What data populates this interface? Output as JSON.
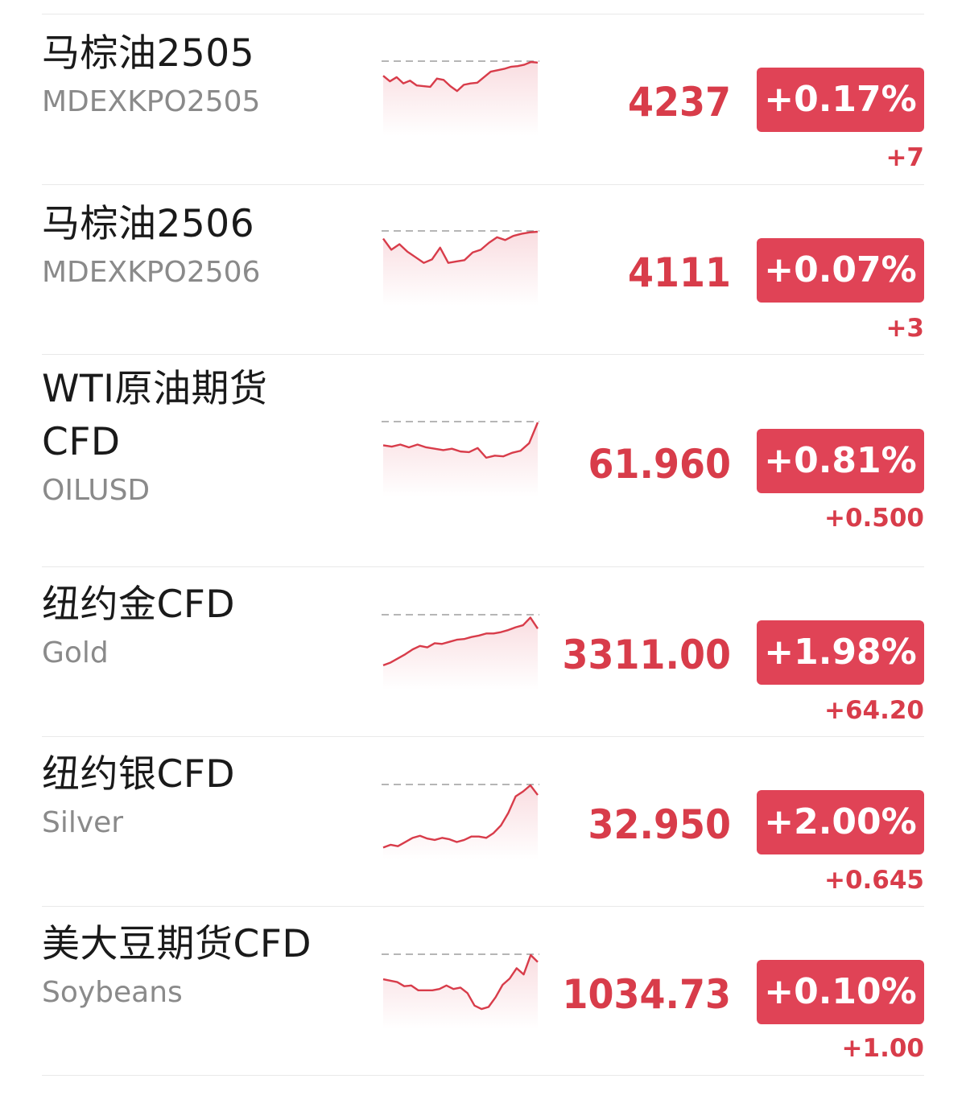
{
  "colors": {
    "up": "#d83c4a",
    "badge": "#e04356",
    "name": "#1a1a1a",
    "code": "#8a8a8a",
    "divider": "#e9e9e9"
  },
  "rows": [
    {
      "name": "马棕油2505",
      "code": "MDEXKPO2505",
      "price": "4237",
      "pct": "+0.17%",
      "change": "+7",
      "spark": [
        20,
        28,
        22,
        31,
        27,
        34,
        35,
        36,
        24,
        26,
        35,
        42,
        33,
        31,
        30,
        22,
        14,
        12,
        10,
        7,
        6,
        4,
        0,
        1
      ]
    },
    {
      "name": "马棕油2506",
      "code": "MDEXKPO2506",
      "price": "4111",
      "pct": "+0.07%",
      "change": "+3",
      "spark": [
        10,
        26,
        18,
        29,
        37,
        45,
        40,
        23,
        45,
        43,
        41,
        30,
        26,
        16,
        8,
        12,
        6,
        3,
        1,
        0
      ]
    },
    {
      "name": "WTI原油期货CFD",
      "code": "OILUSD",
      "price": "61.960",
      "pct": "+0.81%",
      "change": "+0.500",
      "spark": [
        33,
        35,
        32,
        36,
        32,
        36,
        38,
        40,
        38,
        42,
        43,
        37,
        51,
        48,
        49,
        44,
        41,
        30,
        0
      ]
    },
    {
      "name": "纽约金CFD",
      "code": "Gold",
      "price": "3311.00",
      "pct": "+1.98%",
      "change": "+64.20",
      "spark": [
        72,
        68,
        62,
        56,
        49,
        44,
        46,
        40,
        41,
        38,
        35,
        34,
        31,
        29,
        26,
        26,
        24,
        21,
        17,
        14,
        3,
        19
      ]
    },
    {
      "name": "纽约银CFD",
      "code": "Silver",
      "price": "32.950",
      "pct": "+2.00%",
      "change": "+0.645",
      "spark": [
        90,
        86,
        88,
        82,
        76,
        73,
        77,
        79,
        76,
        78,
        82,
        79,
        74,
        74,
        76,
        69,
        58,
        40,
        16,
        9,
        0,
        14
      ]
    },
    {
      "name": "美大豆期货CFD",
      "code": "Soybeans",
      "price": "1034.73",
      "pct": "+0.10%",
      "change": "+1.00",
      "spark": [
        35,
        37,
        39,
        45,
        44,
        51,
        51,
        51,
        49,
        44,
        49,
        47,
        55,
        73,
        78,
        75,
        61,
        43,
        34,
        19,
        28,
        0,
        10
      ]
    }
  ]
}
